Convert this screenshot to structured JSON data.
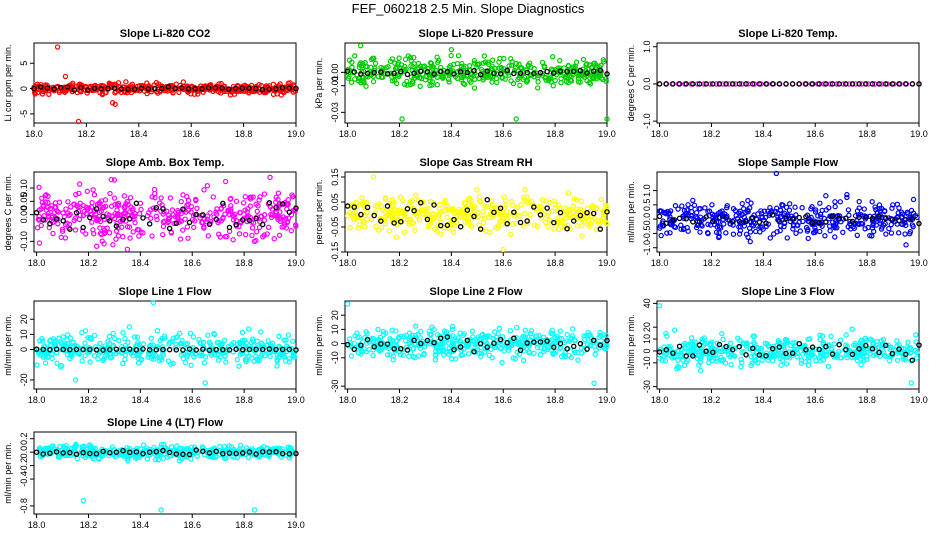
{
  "figure": {
    "title": "FEF_060218  2.5 Min. Slope Diagnostics"
  },
  "colors": {
    "red": "#ff0000",
    "green": "#00cc00",
    "magenta": "#ff00ff",
    "yellow": "#ffff00",
    "blue": "#0000ff",
    "cyan": "#00ffff",
    "black": "#000000"
  },
  "chart_data": [
    {
      "type": "scatter",
      "title": "Slope Li-820 CO2",
      "ylabel": "Li cor ppm per min.",
      "xlim": [
        18.0,
        19.0
      ],
      "ylim": [
        -6.8,
        9.0
      ],
      "yticks": [
        -5,
        0,
        5
      ],
      "ytick_labels": [
        "-5",
        "0",
        "5"
      ],
      "color": "red",
      "spread": 0.5,
      "outliers": [
        [
          18.09,
          8.2
        ],
        [
          18.12,
          2.4
        ],
        [
          18.3,
          -2.8
        ],
        [
          18.31,
          -3.1
        ],
        [
          18.17,
          -6.5
        ],
        [
          18.57,
          1.3
        ]
      ],
      "black_spread": 0.15,
      "flat": false
    },
    {
      "type": "scatter",
      "title": "Slope Li-820 Pressure",
      "ylabel": "kPa per min.",
      "xlim": [
        17.99,
        19.0
      ],
      "ylim": [
        -0.038,
        0.022
      ],
      "yticks": [
        -0.03,
        -0.01,
        0.0
      ],
      "ytick_labels": [
        "-0.03",
        "-0.01",
        "0.00"
      ],
      "color": "green",
      "spread": 0.005,
      "outliers": [
        [
          18.05,
          0.02
        ],
        [
          18.21,
          -0.035
        ],
        [
          18.65,
          -0.035
        ],
        [
          19.0,
          -0.035
        ],
        [
          18.4,
          0.017
        ]
      ],
      "black_spread": 0.001,
      "flat": false
    },
    {
      "type": "scatter",
      "title": "Slope Li-820 Temp.",
      "ylabel": "degrees C per min.",
      "xlim": [
        17.99,
        19.0
      ],
      "ylim": [
        -1.05,
        1.1
      ],
      "yticks": [
        -1.0,
        0.0,
        1.0
      ],
      "ytick_labels": [
        "-1.0",
        "0.0",
        "1.0"
      ],
      "color": "magenta",
      "spread": 0.0,
      "outliers": [],
      "black_spread": 0.0,
      "flat": true
    },
    {
      "type": "scatter",
      "title": "Slope Amb. Box Temp.",
      "ylabel": "degrees C per min.",
      "xlim": [
        17.99,
        19.0
      ],
      "ylim": [
        -0.14,
        0.16
      ],
      "yticks": [
        -0.1,
        0.0,
        0.05,
        0.1
      ],
      "ytick_labels": [
        "-0.10",
        "0.00",
        "0.05",
        "0.10"
      ],
      "color": "magenta",
      "spread": 0.045,
      "outliers": [
        [
          18.9,
          0.14
        ],
        [
          18.35,
          -0.13
        ],
        [
          18.3,
          0.13
        ]
      ],
      "black_spread": 0.03,
      "flat": false
    },
    {
      "type": "scatter",
      "title": "Slope Gas Stream RH",
      "ylabel": "percent per min.",
      "xlim": [
        17.99,
        19.0
      ],
      "ylim": [
        -0.15,
        0.17
      ],
      "yticks": [
        -0.15,
        -0.05,
        0.05,
        0.15
      ],
      "ytick_labels": [
        "-0.15",
        "-0.05",
        "0.05",
        "0.15"
      ],
      "color": "yellow",
      "spread": 0.035,
      "outliers": [
        [
          18.1,
          0.15
        ],
        [
          18.6,
          -0.14
        ]
      ],
      "black_spread": 0.03,
      "flat": false
    },
    {
      "type": "scatter",
      "title": "Slope Sample Flow",
      "ylabel": "ml/min per min.",
      "xlim": [
        17.99,
        19.0
      ],
      "ylim": [
        -1.15,
        1.65
      ],
      "yticks": [
        -1.0,
        -0.5,
        0.0,
        0.5,
        1.0
      ],
      "ytick_labels": [
        "-1.0",
        "-0.5",
        "0.0",
        "0.5",
        "1.0"
      ],
      "color": "blue",
      "spread": 0.3,
      "outliers": [
        [
          18.45,
          1.6
        ],
        [
          18.95,
          -0.9
        ]
      ],
      "black_spread": 0.08,
      "flat": false
    },
    {
      "type": "scatter",
      "title": "Slope Line 1 Flow",
      "ylabel": "ml/min per min.",
      "xlim": [
        17.99,
        19.0
      ],
      "ylim": [
        -26,
        32
      ],
      "yticks": [
        -20,
        0,
        10,
        20
      ],
      "ytick_labels": [
        "-20",
        "0",
        "10",
        "20"
      ],
      "color": "cyan",
      "spread": 5,
      "outliers": [
        [
          18.45,
          31
        ],
        [
          18.15,
          -20
        ],
        [
          18.65,
          -22
        ]
      ],
      "black_spread": 0.2,
      "flat": false
    },
    {
      "type": "scatter",
      "title": "Slope Line 2 Flow",
      "ylabel": "ml/min per min.",
      "xlim": [
        17.99,
        19.0
      ],
      "ylim": [
        -32,
        30
      ],
      "yticks": [
        -30,
        -10,
        0,
        10,
        20
      ],
      "ytick_labels": [
        "-30",
        "-10",
        "0",
        "10",
        "20"
      ],
      "color": "cyan",
      "spread": 5,
      "outliers": [
        [
          18.0,
          28
        ],
        [
          18.95,
          -28
        ]
      ],
      "black_spread": 3,
      "flat": false
    },
    {
      "type": "scatter",
      "title": "Slope Line 3 Flow",
      "ylabel": "ml/min per min.",
      "xlim": [
        17.99,
        19.0
      ],
      "ylim": [
        -32,
        42
      ],
      "yticks": [
        -30,
        -10,
        0,
        10,
        20,
        40
      ],
      "ytick_labels": [
        "-30",
        "-10",
        "0",
        "10",
        "20",
        "40"
      ],
      "color": "cyan",
      "spread": 6,
      "outliers": [
        [
          18.0,
          38
        ],
        [
          18.97,
          -27
        ]
      ],
      "black_spread": 3,
      "flat": false
    },
    {
      "type": "scatter",
      "title": "Slope Line 4 (LT) Flow",
      "ylabel": "ml/min per min.",
      "xlim": [
        17.99,
        19.0
      ],
      "ylim": [
        -0.92,
        0.3
      ],
      "yticks": [
        -0.8,
        -0.4,
        -0.2,
        0.0,
        0.2
      ],
      "ytick_labels": [
        "-0.8",
        "-0.4",
        "-0.2",
        "0.0",
        "0.2"
      ],
      "color": "cyan",
      "spread": 0.05,
      "outliers": [
        [
          18.18,
          -0.72
        ],
        [
          18.84,
          -0.86
        ],
        [
          18.48,
          -0.86
        ]
      ],
      "black_spread": 0.02,
      "flat": false
    }
  ],
  "x_axis": {
    "ticks": [
      18.0,
      18.2,
      18.4,
      18.6,
      18.8,
      19.0
    ],
    "tick_labels": [
      "18.0",
      "18.2",
      "18.4",
      "18.6",
      "18.8",
      "19.0"
    ]
  }
}
